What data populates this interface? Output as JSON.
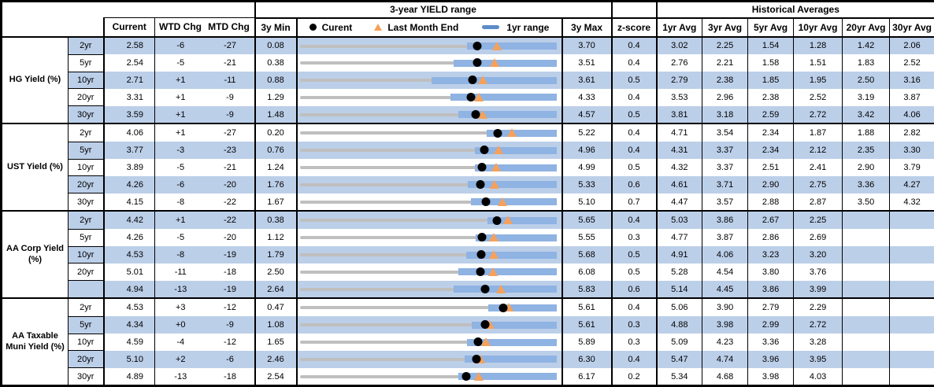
{
  "titles": {
    "chart_section": "3-year YIELD range",
    "historical_section": "Historical Averages"
  },
  "legend": {
    "current": "Curent",
    "last_month_end": "Last Month End",
    "range_1yr": "1yr range"
  },
  "columns": {
    "current": "Current",
    "wtd_chg": "WTD Chg",
    "mtd_chg": "MTD Chg",
    "min_3y": "3y Min",
    "max_3y": "3y Max",
    "z_score": "z-score",
    "avgs": [
      "1yr Avg",
      "3yr Avg",
      "5yr Avg",
      "10yr Avg",
      "20yr Avg",
      "30yr Avg"
    ]
  },
  "colors": {
    "row_shade": "#BCCFE9",
    "bar_blue": "#8FB3E2",
    "legend_blue": "#5C8CC9",
    "line_gray": "#BFBFBF",
    "marker_orange": "#F5A15C",
    "marker_black": "#000000"
  },
  "groups": [
    {
      "label": "HG Yield (%)",
      "rows": [
        {
          "tenor": "2yr",
          "current": "2.58",
          "wtd_chg": "-6",
          "mtd_chg": "-27",
          "min_3y": "0.08",
          "max_3y": "3.70",
          "z_score": "0.4",
          "avgs": [
            "3.02",
            "2.25",
            "1.54",
            "1.28",
            "1.42",
            "2.06"
          ]
        },
        {
          "tenor": "5yr",
          "current": "2.54",
          "wtd_chg": "-5",
          "mtd_chg": "-21",
          "min_3y": "0.38",
          "max_3y": "3.51",
          "z_score": "0.4",
          "avgs": [
            "2.76",
            "2.21",
            "1.58",
            "1.51",
            "1.83",
            "2.52"
          ]
        },
        {
          "tenor": "10yr",
          "current": "2.71",
          "wtd_chg": "+1",
          "mtd_chg": "-11",
          "min_3y": "0.88",
          "max_3y": "3.61",
          "z_score": "0.5",
          "avgs": [
            "2.79",
            "2.38",
            "1.85",
            "1.95",
            "2.50",
            "3.16"
          ]
        },
        {
          "tenor": "20yr",
          "current": "3.31",
          "wtd_chg": "+1",
          "mtd_chg": "-9",
          "min_3y": "1.29",
          "max_3y": "4.33",
          "z_score": "0.4",
          "avgs": [
            "3.53",
            "2.96",
            "2.38",
            "2.52",
            "3.19",
            "3.87"
          ]
        },
        {
          "tenor": "30yr",
          "current": "3.59",
          "wtd_chg": "+1",
          "mtd_chg": "-9",
          "min_3y": "1.48",
          "max_3y": "4.57",
          "z_score": "0.5",
          "avgs": [
            "3.81",
            "3.18",
            "2.59",
            "2.72",
            "3.42",
            "4.06"
          ]
        }
      ]
    },
    {
      "label": "UST Yield (%)",
      "rows": [
        {
          "tenor": "2yr",
          "current": "4.06",
          "wtd_chg": "+1",
          "mtd_chg": "-27",
          "min_3y": "0.20",
          "max_3y": "5.22",
          "z_score": "0.4",
          "avgs": [
            "4.71",
            "3.54",
            "2.34",
            "1.87",
            "1.88",
            "2.82"
          ]
        },
        {
          "tenor": "5yr",
          "current": "3.77",
          "wtd_chg": "-3",
          "mtd_chg": "-23",
          "min_3y": "0.76",
          "max_3y": "4.96",
          "z_score": "0.4",
          "avgs": [
            "4.31",
            "3.37",
            "2.34",
            "2.12",
            "2.35",
            "3.30"
          ]
        },
        {
          "tenor": "10yr",
          "current": "3.89",
          "wtd_chg": "-5",
          "mtd_chg": "-21",
          "min_3y": "1.24",
          "max_3y": "4.99",
          "z_score": "0.5",
          "avgs": [
            "4.32",
            "3.37",
            "2.51",
            "2.41",
            "2.90",
            "3.79"
          ]
        },
        {
          "tenor": "20yr",
          "current": "4.26",
          "wtd_chg": "-6",
          "mtd_chg": "-20",
          "min_3y": "1.76",
          "max_3y": "5.33",
          "z_score": "0.6",
          "avgs": [
            "4.61",
            "3.71",
            "2.90",
            "2.75",
            "3.36",
            "4.27"
          ]
        },
        {
          "tenor": "30yr",
          "current": "4.15",
          "wtd_chg": "-8",
          "mtd_chg": "-22",
          "min_3y": "1.67",
          "max_3y": "5.10",
          "z_score": "0.7",
          "avgs": [
            "4.47",
            "3.57",
            "2.88",
            "2.87",
            "3.50",
            "4.32"
          ]
        }
      ]
    },
    {
      "label": "AA Corp Yield (%)",
      "rows": [
        {
          "tenor": "2yr",
          "current": "4.42",
          "wtd_chg": "+1",
          "mtd_chg": "-22",
          "min_3y": "0.38",
          "max_3y": "5.65",
          "z_score": "0.4",
          "avgs": [
            "5.03",
            "3.86",
            "2.67",
            "2.25",
            "",
            ""
          ]
        },
        {
          "tenor": "5yr",
          "current": "4.26",
          "wtd_chg": "-5",
          "mtd_chg": "-20",
          "min_3y": "1.12",
          "max_3y": "5.55",
          "z_score": "0.3",
          "avgs": [
            "4.77",
            "3.87",
            "2.86",
            "2.69",
            "",
            ""
          ]
        },
        {
          "tenor": "10yr",
          "current": "4.53",
          "wtd_chg": "-8",
          "mtd_chg": "-19",
          "min_3y": "1.79",
          "max_3y": "5.68",
          "z_score": "0.5",
          "avgs": [
            "4.91",
            "4.06",
            "3.23",
            "3.20",
            "",
            ""
          ]
        },
        {
          "tenor": "20yr",
          "current": "5.01",
          "wtd_chg": "-11",
          "mtd_chg": "-18",
          "min_3y": "2.50",
          "max_3y": "6.08",
          "z_score": "0.5",
          "avgs": [
            "5.28",
            "4.54",
            "3.80",
            "3.76",
            "",
            ""
          ]
        },
        {
          "tenor": "",
          "current": "4.94",
          "wtd_chg": "-13",
          "mtd_chg": "-19",
          "min_3y": "2.64",
          "max_3y": "5.83",
          "z_score": "0.6",
          "avgs": [
            "5.14",
            "4.45",
            "3.86",
            "3.99",
            "",
            ""
          ]
        }
      ]
    },
    {
      "label": "AA Taxable Muni Yield (%)",
      "rows": [
        {
          "tenor": "2yr",
          "current": "4.53",
          "wtd_chg": "+3",
          "mtd_chg": "-12",
          "min_3y": "0.47",
          "max_3y": "5.61",
          "z_score": "0.4",
          "avgs": [
            "5.06",
            "3.90",
            "2.79",
            "2.29",
            "",
            ""
          ]
        },
        {
          "tenor": "5yr",
          "current": "4.34",
          "wtd_chg": "+0",
          "mtd_chg": "-9",
          "min_3y": "1.08",
          "max_3y": "5.61",
          "z_score": "0.3",
          "avgs": [
            "4.88",
            "3.98",
            "2.99",
            "2.72",
            "",
            ""
          ]
        },
        {
          "tenor": "10yr",
          "current": "4.59",
          "wtd_chg": "-4",
          "mtd_chg": "-12",
          "min_3y": "1.65",
          "max_3y": "5.89",
          "z_score": "0.3",
          "avgs": [
            "5.09",
            "4.23",
            "3.36",
            "3.28",
            "",
            ""
          ]
        },
        {
          "tenor": "20yr",
          "current": "5.10",
          "wtd_chg": "+2",
          "mtd_chg": "-6",
          "min_3y": "2.46",
          "max_3y": "6.30",
          "z_score": "0.4",
          "avgs": [
            "5.47",
            "4.74",
            "3.96",
            "3.95",
            "",
            ""
          ]
        },
        {
          "tenor": "30yr",
          "current": "4.89",
          "wtd_chg": "-13",
          "mtd_chg": "-18",
          "min_3y": "2.54",
          "max_3y": "6.17",
          "z_score": "0.2",
          "avgs": [
            "5.34",
            "4.68",
            "3.98",
            "4.03",
            "",
            ""
          ]
        }
      ]
    }
  ],
  "chart_data": {
    "type": "bullet-range",
    "title": "3-year YIELD range",
    "x_unit": "yield %",
    "legend": [
      "Curent (black dot)",
      "Last Month End (orange triangle)",
      "1yr range (blue bar)",
      "3y range (gray line)"
    ],
    "rows": [
      {
        "group": "HG Yield (%)",
        "tenor": "2yr",
        "range_3y": [
          0.08,
          3.7
        ],
        "range_1yr": [
          2.43,
          3.7
        ],
        "current": 2.58,
        "last_month_end": 2.85
      },
      {
        "group": "HG Yield (%)",
        "tenor": "5yr",
        "range_3y": [
          0.38,
          3.51
        ],
        "range_1yr": [
          2.25,
          3.51
        ],
        "current": 2.54,
        "last_month_end": 2.75
      },
      {
        "group": "HG Yield (%)",
        "tenor": "10yr",
        "range_3y": [
          0.88,
          3.61
        ],
        "range_1yr": [
          2.28,
          3.61
        ],
        "current": 2.71,
        "last_month_end": 2.82
      },
      {
        "group": "HG Yield (%)",
        "tenor": "20yr",
        "range_3y": [
          1.29,
          4.33
        ],
        "range_1yr": [
          3.07,
          4.33
        ],
        "current": 3.31,
        "last_month_end": 3.4
      },
      {
        "group": "HG Yield (%)",
        "tenor": "30yr",
        "range_3y": [
          1.48,
          4.57
        ],
        "range_1yr": [
          3.38,
          4.57
        ],
        "current": 3.59,
        "last_month_end": 3.68
      },
      {
        "group": "UST Yield (%)",
        "tenor": "2yr",
        "range_3y": [
          0.2,
          5.22
        ],
        "range_1yr": [
          3.84,
          5.22
        ],
        "current": 4.06,
        "last_month_end": 4.33
      },
      {
        "group": "UST Yield (%)",
        "tenor": "5yr",
        "range_3y": [
          0.76,
          4.96
        ],
        "range_1yr": [
          3.62,
          4.96
        ],
        "current": 3.77,
        "last_month_end": 4.0
      },
      {
        "group": "UST Yield (%)",
        "tenor": "10yr",
        "range_3y": [
          1.24,
          4.99
        ],
        "range_1yr": [
          3.79,
          4.99
        ],
        "current": 3.89,
        "last_month_end": 4.1
      },
      {
        "group": "UST Yield (%)",
        "tenor": "20yr",
        "range_3y": [
          1.76,
          5.33
        ],
        "range_1yr": [
          4.09,
          5.33
        ],
        "current": 4.26,
        "last_month_end": 4.46
      },
      {
        "group": "UST Yield (%)",
        "tenor": "30yr",
        "range_3y": [
          1.67,
          5.1
        ],
        "range_1yr": [
          3.95,
          5.1
        ],
        "current": 4.15,
        "last_month_end": 4.37
      },
      {
        "group": "AA Corp Yield (%)",
        "tenor": "2yr",
        "range_3y": [
          0.38,
          5.65
        ],
        "range_1yr": [
          4.22,
          5.65
        ],
        "current": 4.42,
        "last_month_end": 4.64
      },
      {
        "group": "AA Corp Yield (%)",
        "tenor": "5yr",
        "range_3y": [
          1.12,
          5.55
        ],
        "range_1yr": [
          4.15,
          5.55
        ],
        "current": 4.26,
        "last_month_end": 4.46
      },
      {
        "group": "AA Corp Yield (%)",
        "tenor": "10yr",
        "range_3y": [
          1.79,
          5.68
        ],
        "range_1yr": [
          4.31,
          5.68
        ],
        "current": 4.53,
        "last_month_end": 4.72
      },
      {
        "group": "AA Corp Yield (%)",
        "tenor": "20yr",
        "range_3y": [
          2.5,
          6.08
        ],
        "range_1yr": [
          4.7,
          6.08
        ],
        "current": 5.01,
        "last_month_end": 5.19
      },
      {
        "group": "AA Corp Yield (%)",
        "tenor": "30yr",
        "range_3y": [
          2.64,
          5.83
        ],
        "range_1yr": [
          4.55,
          5.83
        ],
        "current": 4.94,
        "last_month_end": 5.13
      },
      {
        "group": "AA Taxable Muni Yield (%)",
        "tenor": "2yr",
        "range_3y": [
          0.47,
          5.61
        ],
        "range_1yr": [
          4.24,
          5.61
        ],
        "current": 4.53,
        "last_month_end": 4.65
      },
      {
        "group": "AA Taxable Muni Yield (%)",
        "tenor": "5yr",
        "range_3y": [
          1.08,
          5.61
        ],
        "range_1yr": [
          4.11,
          5.61
        ],
        "current": 4.34,
        "last_month_end": 4.43
      },
      {
        "group": "AA Taxable Muni Yield (%)",
        "tenor": "10yr",
        "range_3y": [
          1.65,
          5.89
        ],
        "range_1yr": [
          4.4,
          5.89
        ],
        "current": 4.59,
        "last_month_end": 4.71
      },
      {
        "group": "AA Taxable Muni Yield (%)",
        "tenor": "20yr",
        "range_3y": [
          2.46,
          6.3
        ],
        "range_1yr": [
          4.92,
          6.3
        ],
        "current": 5.1,
        "last_month_end": 5.16
      },
      {
        "group": "AA Taxable Muni Yield (%)",
        "tenor": "30yr",
        "range_3y": [
          2.54,
          6.17
        ],
        "range_1yr": [
          4.78,
          6.17
        ],
        "current": 4.89,
        "last_month_end": 5.07
      }
    ]
  }
}
